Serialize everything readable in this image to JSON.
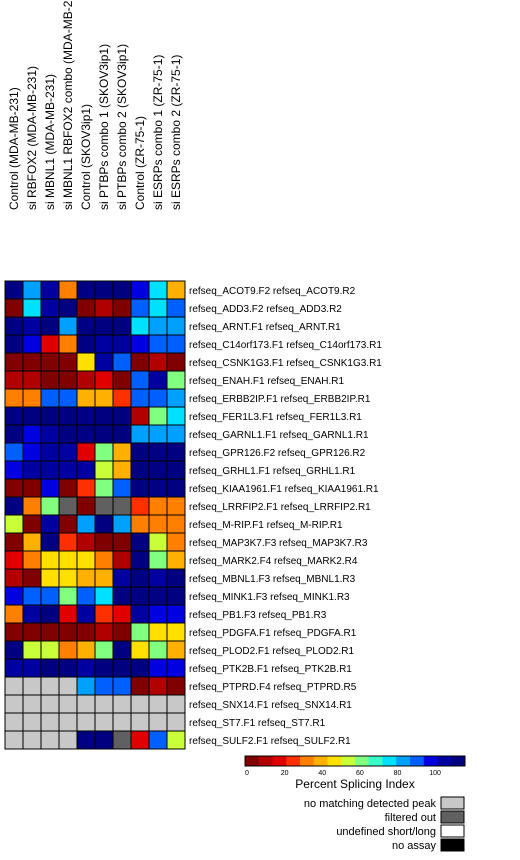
{
  "chart_data": {
    "type": "heatmap",
    "columns": [
      "Control (MDA-MB-231)",
      "si RBFOX2  (MDA-MB-231)",
      "si MBNL1 (MDA-MB-231)",
      "si MBNL1 RBFOX2 combo (MDA-MB-231)",
      "Control (SKOV3ip1)",
      "si PTBPs combo 1 (SKOV3ip1)",
      "si PTBPs combo 2 (SKOV3ip1)",
      "Control (ZR-75-1)",
      "si ESRPs combo 1 (ZR-75-1)",
      "si ESRPs combo 2 (ZR-75-1)"
    ],
    "rows": [
      "refseq_ACOT9.F2  refseq_ACOT9.R2",
      "refseq_ADD3.F2  refseq_ADD3.R2",
      "refseq_ARNT.F1  refseq_ARNT.R1",
      "refseq_C14orf173.F1  refseq_C14orf173.R1",
      "refseq_CSNK1G3.F1  refseq_CSNK1G3.R1",
      "refseq_ENAH.F1  refseq_ENAH.R1",
      "refseq_ERBB2IP.F1  refseq_ERBB2IP.R1",
      "refseq_FER1L3.F1  refseq_FER1L3.R1",
      "refseq_GARNL1.F1  refseq_GARNL1.R1",
      "refseq_GPR126.F2  refseq_GPR126.R2",
      "refseq_GRHL1.F1  refseq_GRHL1.R1",
      "refseq_KIAA1961.F1  refseq_KIAA1961.R1",
      "refseq_LRRFIP2.F1  refseq_LRRFIP2.R1",
      "refseq_M-RIP.F1  refseq_M-RIP.R1",
      "refseq_MAP3K7.F3  refseq_MAP3K7.R3",
      "refseq_MARK2.F4  refseq_MARK2.R4",
      "refseq_MBNL1.F3  refseq_MBNL1.R3",
      "refseq_MINK1.F3  refseq_MINK1.R3",
      "refseq_PB1.F3  refseq_PB1.R3",
      "refseq_PDGFA.F1  refseq_PDGFA.R1",
      "refseq_PLOD2.F1  refseq_PLOD2.R1",
      "refseq_PTK2B.F1  refseq_PTK2B.R1",
      "refseq_PTPRD.F4  refseq_PTPRD.R5",
      "refseq_SNX14.F1  refseq_SNX14.R1",
      "refseq_ST7.F1  refseq_ST7.R1",
      "refseq_SULF2.F1  refseq_SULF2.R1"
    ],
    "values": [
      [
        95,
        70,
        90,
        30,
        95,
        100,
        95,
        85,
        65,
        35
      ],
      [
        5,
        65,
        90,
        95,
        5,
        10,
        5,
        80,
        65,
        75
      ],
      [
        95,
        90,
        95,
        70,
        95,
        95,
        95,
        65,
        70,
        70
      ],
      [
        95,
        85,
        15,
        25,
        95,
        90,
        90,
        85,
        80,
        80
      ],
      [
        5,
        5,
        5,
        0,
        40,
        90,
        80,
        5,
        10,
        5
      ],
      [
        10,
        10,
        5,
        5,
        10,
        15,
        5,
        80,
        90,
        55
      ],
      [
        30,
        30,
        75,
        75,
        35,
        35,
        20,
        75,
        80,
        70
      ],
      [
        100,
        100,
        100,
        100,
        100,
        100,
        100,
        10,
        55,
        65
      ],
      [
        100,
        85,
        90,
        100,
        100,
        95,
        95,
        70,
        70,
        70
      ],
      [
        80,
        85,
        90,
        90,
        15,
        55,
        35,
        95,
        95,
        95
      ],
      [
        85,
        90,
        90,
        90,
        90,
        45,
        35,
        95,
        95,
        95
      ],
      [
        5,
        5,
        85,
        5,
        20,
        55,
        80,
        95,
        100,
        100
      ],
      [
        95,
        30,
        50,
        "f",
        5,
        "f",
        "f",
        20,
        25,
        25
      ],
      [
        45,
        5,
        90,
        5,
        70,
        95,
        70,
        25,
        25,
        30
      ],
      [
        5,
        35,
        95,
        20,
        10,
        5,
        5,
        95,
        45,
        30
      ],
      [
        15,
        25,
        40,
        40,
        40,
        30,
        10,
        95,
        50,
        35
      ],
      [
        10,
        5,
        40,
        40,
        35,
        35,
        90,
        95,
        90,
        95
      ],
      [
        85,
        80,
        75,
        55,
        80,
        65,
        95,
        95,
        95,
        95
      ],
      [
        30,
        90,
        95,
        15,
        90,
        20,
        15,
        90,
        85,
        85
      ],
      [
        5,
        5,
        5,
        5,
        5,
        10,
        5,
        55,
        40,
        40
      ],
      [
        95,
        45,
        45,
        25,
        35,
        55,
        95,
        40,
        55,
        35
      ],
      [
        90,
        90,
        95,
        95,
        90,
        95,
        95,
        95,
        85,
        85
      ],
      [
        "g",
        "g",
        "g",
        "g",
        70,
        75,
        80,
        5,
        10,
        5
      ],
      [
        "g",
        "g",
        "g",
        "g",
        "g",
        "g",
        "g",
        "g",
        "g",
        "g"
      ],
      [
        "g",
        "g",
        "g",
        "g",
        "g",
        "g",
        "g",
        "g",
        "g",
        "g"
      ],
      [
        "g",
        "g",
        "g",
        "g",
        100,
        100,
        "f",
        15,
        80,
        45
      ]
    ],
    "scale": {
      "min": 0,
      "max": 100,
      "ticks": [
        0,
        20,
        40,
        60,
        80,
        100
      ],
      "title": "Percent Splicing Index"
    },
    "colormap": [
      "#800000",
      "#b00000",
      "#e00000",
      "#ff3000",
      "#ff8000",
      "#ffb000",
      "#ffe000",
      "#c8ff38",
      "#80ff80",
      "#38ffc8",
      "#00e0ff",
      "#00a0ff",
      "#0060ff",
      "#0000e0",
      "#0000a0",
      "#000080"
    ],
    "key": [
      {
        "label": "no matching detected peak",
        "color": "#c8c8c8",
        "code": "g"
      },
      {
        "label": "filtered out",
        "color": "#606060",
        "code": "f"
      },
      {
        "label": "undefined short/long",
        "color": "#ffffff",
        "code": "u"
      },
      {
        "label": "no assay",
        "color": "#000000",
        "code": "n"
      }
    ]
  }
}
